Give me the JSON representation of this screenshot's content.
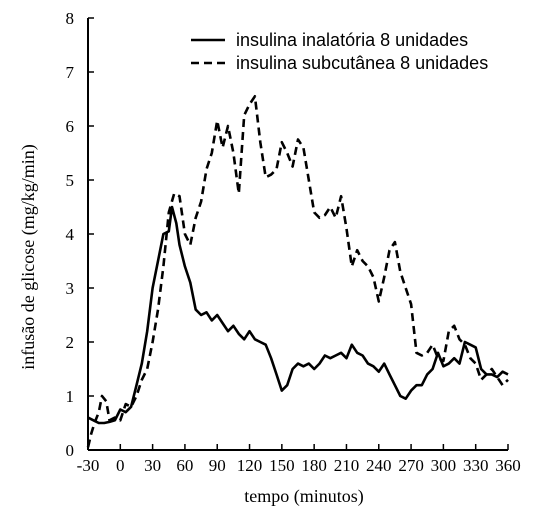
{
  "chart_data": {
    "type": "line",
    "title": "",
    "xlabel": "tempo (minutos)",
    "ylabel": "infusão de glicose (mg/kg/min)",
    "xlim": [
      -30,
      360
    ],
    "ylim": [
      0,
      8
    ],
    "x_ticks": [
      -30,
      0,
      30,
      60,
      90,
      120,
      150,
      180,
      210,
      240,
      270,
      300,
      330,
      360
    ],
    "y_ticks": [
      0,
      1,
      2,
      3,
      4,
      5,
      6,
      7,
      8
    ],
    "grid": false,
    "legend_position": "top-right",
    "series": [
      {
        "name": "insulina inalatória 8 unidades",
        "style": "solid",
        "color": "#000000",
        "points": [
          [
            -30,
            0.6
          ],
          [
            -25,
            0.55
          ],
          [
            -20,
            0.5
          ],
          [
            -15,
            0.5
          ],
          [
            -10,
            0.52
          ],
          [
            -5,
            0.55
          ],
          [
            0,
            0.75
          ],
          [
            5,
            0.7
          ],
          [
            10,
            0.8
          ],
          [
            15,
            1.2
          ],
          [
            20,
            1.6
          ],
          [
            25,
            2.2
          ],
          [
            30,
            3.0
          ],
          [
            35,
            3.5
          ],
          [
            40,
            4.0
          ],
          [
            45,
            4.05
          ],
          [
            48,
            4.5
          ],
          [
            52,
            4.2
          ],
          [
            55,
            3.8
          ],
          [
            60,
            3.4
          ],
          [
            65,
            3.1
          ],
          [
            70,
            2.6
          ],
          [
            75,
            2.5
          ],
          [
            80,
            2.55
          ],
          [
            85,
            2.4
          ],
          [
            90,
            2.5
          ],
          [
            95,
            2.35
          ],
          [
            100,
            2.2
          ],
          [
            105,
            2.3
          ],
          [
            110,
            2.15
          ],
          [
            115,
            2.05
          ],
          [
            120,
            2.2
          ],
          [
            125,
            2.05
          ],
          [
            130,
            2.0
          ],
          [
            135,
            1.95
          ],
          [
            140,
            1.7
          ],
          [
            145,
            1.4
          ],
          [
            150,
            1.1
          ],
          [
            155,
            1.2
          ],
          [
            160,
            1.5
          ],
          [
            165,
            1.6
          ],
          [
            170,
            1.55
          ],
          [
            175,
            1.6
          ],
          [
            180,
            1.5
          ],
          [
            185,
            1.6
          ],
          [
            190,
            1.75
          ],
          [
            195,
            1.7
          ],
          [
            200,
            1.75
          ],
          [
            205,
            1.8
          ],
          [
            210,
            1.7
          ],
          [
            215,
            1.95
          ],
          [
            220,
            1.8
          ],
          [
            225,
            1.75
          ],
          [
            230,
            1.6
          ],
          [
            235,
            1.55
          ],
          [
            240,
            1.45
          ],
          [
            245,
            1.6
          ],
          [
            250,
            1.4
          ],
          [
            255,
            1.2
          ],
          [
            260,
            1.0
          ],
          [
            265,
            0.95
          ],
          [
            270,
            1.1
          ],
          [
            275,
            1.2
          ],
          [
            280,
            1.2
          ],
          [
            285,
            1.4
          ],
          [
            290,
            1.5
          ],
          [
            295,
            1.8
          ],
          [
            300,
            1.55
          ],
          [
            305,
            1.6
          ],
          [
            310,
            1.7
          ],
          [
            315,
            1.6
          ],
          [
            320,
            2.0
          ],
          [
            325,
            1.95
          ],
          [
            330,
            1.9
          ],
          [
            335,
            1.5
          ],
          [
            340,
            1.4
          ],
          [
            345,
            1.4
          ],
          [
            350,
            1.35
          ],
          [
            355,
            1.45
          ],
          [
            360,
            1.4
          ]
        ]
      },
      {
        "name": "insulina subcutânea 8 unidades",
        "style": "dashed",
        "color": "#000000",
        "points": [
          [
            -30,
            0.05
          ],
          [
            -27,
            0.3
          ],
          [
            -24,
            0.5
          ],
          [
            -20,
            0.7
          ],
          [
            -17,
            1.0
          ],
          [
            -13,
            0.9
          ],
          [
            -10,
            0.55
          ],
          [
            -5,
            0.6
          ],
          [
            0,
            0.55
          ],
          [
            5,
            0.85
          ],
          [
            10,
            0.8
          ],
          [
            15,
            1.0
          ],
          [
            20,
            1.3
          ],
          [
            25,
            1.5
          ],
          [
            30,
            2.0
          ],
          [
            35,
            2.6
          ],
          [
            40,
            3.4
          ],
          [
            45,
            4.4
          ],
          [
            50,
            4.75
          ],
          [
            55,
            4.7
          ],
          [
            60,
            4.0
          ],
          [
            65,
            3.8
          ],
          [
            70,
            4.3
          ],
          [
            75,
            4.6
          ],
          [
            80,
            5.2
          ],
          [
            85,
            5.5
          ],
          [
            90,
            6.1
          ],
          [
            95,
            5.6
          ],
          [
            100,
            6.0
          ],
          [
            105,
            5.5
          ],
          [
            110,
            4.75
          ],
          [
            115,
            6.2
          ],
          [
            120,
            6.4
          ],
          [
            125,
            6.55
          ],
          [
            130,
            5.7
          ],
          [
            135,
            5.05
          ],
          [
            140,
            5.1
          ],
          [
            145,
            5.2
          ],
          [
            150,
            5.7
          ],
          [
            155,
            5.5
          ],
          [
            160,
            5.25
          ],
          [
            165,
            5.75
          ],
          [
            170,
            5.6
          ],
          [
            175,
            5.0
          ],
          [
            180,
            4.4
          ],
          [
            185,
            4.3
          ],
          [
            190,
            4.35
          ],
          [
            195,
            4.5
          ],
          [
            200,
            4.3
          ],
          [
            205,
            4.7
          ],
          [
            210,
            4.1
          ],
          [
            215,
            3.4
          ],
          [
            220,
            3.7
          ],
          [
            225,
            3.5
          ],
          [
            230,
            3.4
          ],
          [
            235,
            3.2
          ],
          [
            240,
            2.75
          ],
          [
            245,
            3.2
          ],
          [
            250,
            3.7
          ],
          [
            255,
            3.85
          ],
          [
            260,
            3.3
          ],
          [
            265,
            3.0
          ],
          [
            270,
            2.7
          ],
          [
            275,
            1.8
          ],
          [
            280,
            1.75
          ],
          [
            285,
            1.8
          ],
          [
            290,
            1.95
          ],
          [
            295,
            1.7
          ],
          [
            300,
            1.65
          ],
          [
            305,
            2.2
          ],
          [
            310,
            2.3
          ],
          [
            315,
            2.05
          ],
          [
            320,
            1.95
          ],
          [
            325,
            1.7
          ],
          [
            330,
            1.6
          ],
          [
            335,
            1.3
          ],
          [
            340,
            1.4
          ],
          [
            345,
            1.5
          ],
          [
            350,
            1.35
          ],
          [
            355,
            1.2
          ],
          [
            360,
            1.3
          ]
        ]
      }
    ]
  }
}
